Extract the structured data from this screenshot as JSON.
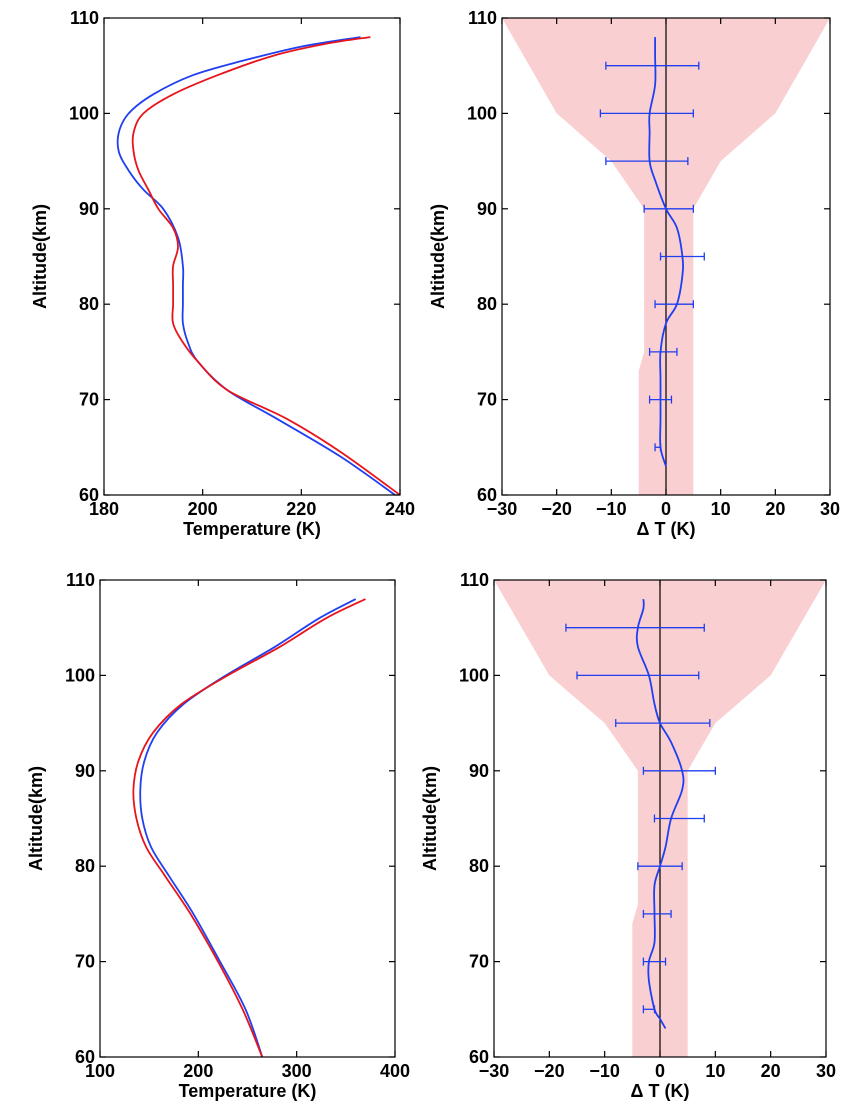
{
  "colors": {
    "blue": "#1f3ff0",
    "red": "#e8141c",
    "band": "#f9cfd2",
    "axis": "#000000"
  },
  "chart_data": [
    {
      "type": "line",
      "panel": "top-left",
      "xlabel": "Temperature (K)",
      "ylabel": "Altitude(km)",
      "xlim": [
        180,
        240
      ],
      "ylim": [
        60,
        110
      ],
      "xticks": [
        180,
        200,
        220,
        240
      ],
      "yticks": [
        60,
        70,
        80,
        90,
        100,
        110
      ],
      "grid": false,
      "series": [
        {
          "color": "blue",
          "points": [
            [
              239,
              60
            ],
            [
              228,
              64
            ],
            [
              215,
              68
            ],
            [
              205,
              71
            ],
            [
              199,
              74
            ],
            [
              197,
              76
            ],
            [
              196,
              78
            ],
            [
              196,
              80
            ],
            [
              196,
              82
            ],
            [
              196,
              84
            ],
            [
              195,
              87
            ],
            [
              192,
              90
            ],
            [
              188,
              92
            ],
            [
              185,
              94
            ],
            [
              183,
              96
            ],
            [
              183,
              98
            ],
            [
              185,
              100
            ],
            [
              190,
              102
            ],
            [
              198,
              104
            ],
            [
              208,
              105.5
            ],
            [
              220,
              107
            ],
            [
              232,
              108
            ]
          ]
        },
        {
          "color": "red",
          "points": [
            [
              240,
              60
            ],
            [
              228,
              64.5
            ],
            [
              217,
              68
            ],
            [
              205,
              71
            ],
            [
              199,
              74
            ],
            [
              196,
              76
            ],
            [
              194,
              78
            ],
            [
              194,
              80
            ],
            [
              194,
              82
            ],
            [
              194,
              84
            ],
            [
              195,
              86
            ],
            [
              194,
              88
            ],
            [
              191,
              90
            ],
            [
              189,
              92
            ],
            [
              187,
              94
            ],
            [
              186,
              96
            ],
            [
              186,
              98
            ],
            [
              188,
              100
            ],
            [
              194,
              102
            ],
            [
              203,
              104
            ],
            [
              214,
              106
            ],
            [
              225,
              107.3
            ],
            [
              234,
              108
            ]
          ]
        }
      ]
    },
    {
      "type": "line",
      "panel": "top-right",
      "xlabel": "Δ T (K)",
      "ylabel": "Altitude(km)",
      "xlim": [
        -30,
        30
      ],
      "ylim": [
        60,
        110
      ],
      "xticks": [
        -30,
        -20,
        -10,
        0,
        10,
        20,
        30
      ],
      "yticks": [
        60,
        70,
        80,
        90,
        100,
        110
      ],
      "grid": false,
      "zero_line": true,
      "band": [
        [
          -5,
          60
        ],
        [
          -5,
          73
        ],
        [
          -4,
          75
        ],
        [
          -4,
          79
        ],
        [
          -4,
          84
        ],
        [
          -4,
          90
        ],
        [
          -10,
          95
        ],
        [
          -20,
          100
        ],
        [
          -30,
          110
        ],
        [
          30,
          110
        ],
        [
          20,
          100
        ],
        [
          10,
          95
        ],
        [
          5,
          90
        ],
        [
          5,
          84
        ],
        [
          5,
          79
        ],
        [
          5,
          75
        ],
        [
          5,
          73
        ],
        [
          5,
          60
        ]
      ],
      "series": [
        {
          "color": "blue",
          "points": [
            [
              0,
              63
            ],
            [
              -1,
              65
            ],
            [
              -1,
              68
            ],
            [
              -1,
              72
            ],
            [
              -1,
              75
            ],
            [
              0,
              78
            ],
            [
              2,
              80
            ],
            [
              3,
              83
            ],
            [
              3,
              85
            ],
            [
              2,
              88
            ],
            [
              0,
              90
            ],
            [
              -2,
              93
            ],
            [
              -3,
              95
            ],
            [
              -3,
              98
            ],
            [
              -3,
              100
            ],
            [
              -2,
              103
            ],
            [
              -2,
              106
            ],
            [
              -2,
              108
            ]
          ]
        }
      ],
      "error_bars": [
        {
          "y": 65,
          "lo": -2,
          "hi": -1
        },
        {
          "y": 70,
          "lo": -3,
          "hi": 1
        },
        {
          "y": 75,
          "lo": -3,
          "hi": 2
        },
        {
          "y": 80,
          "lo": -2,
          "hi": 5
        },
        {
          "y": 85,
          "lo": -1,
          "hi": 7
        },
        {
          "y": 90,
          "lo": -4,
          "hi": 5
        },
        {
          "y": 95,
          "lo": -11,
          "hi": 4
        },
        {
          "y": 100,
          "lo": -12,
          "hi": 5
        },
        {
          "y": 105,
          "lo": -11,
          "hi": 6
        }
      ]
    },
    {
      "type": "line",
      "panel": "bottom-left",
      "xlabel": "Temperature (K)",
      "ylabel": "Altitude(km)",
      "xlim": [
        100,
        400
      ],
      "ylim": [
        60,
        110
      ],
      "xticks": [
        100,
        200,
        300,
        400
      ],
      "yticks": [
        60,
        70,
        80,
        90,
        100,
        110
      ],
      "grid": false,
      "series": [
        {
          "color": "blue",
          "points": [
            [
              265,
              60
            ],
            [
              248,
              65
            ],
            [
              222,
              70
            ],
            [
              195,
              75
            ],
            [
              170,
              79
            ],
            [
              152,
              82
            ],
            [
              143,
              85
            ],
            [
              141,
              88
            ],
            [
              145,
              91
            ],
            [
              158,
              94
            ],
            [
              185,
              97
            ],
            [
              228,
              100
            ],
            [
              278,
              103
            ],
            [
              323,
              106
            ],
            [
              360,
              108
            ]
          ]
        },
        {
          "color": "red",
          "points": [
            [
              265,
              60
            ],
            [
              245,
              65
            ],
            [
              220,
              70
            ],
            [
              192,
              75
            ],
            [
              166,
              79
            ],
            [
              147,
              82
            ],
            [
              137,
              85
            ],
            [
              134,
              88
            ],
            [
              139,
              91
            ],
            [
              154,
              94
            ],
            [
              183,
              97
            ],
            [
              230,
              100
            ],
            [
              283,
              103
            ],
            [
              330,
              106
            ],
            [
              370,
              108
            ]
          ]
        }
      ]
    },
    {
      "type": "line",
      "panel": "bottom-right",
      "xlabel": "Δ T (K)",
      "ylabel": "Altitude(km)",
      "xlim": [
        -30,
        30
      ],
      "ylim": [
        60,
        110
      ],
      "xticks": [
        -30,
        -20,
        -10,
        0,
        10,
        20,
        30
      ],
      "yticks": [
        60,
        70,
        80,
        90,
        100,
        110
      ],
      "grid": false,
      "zero_line": true,
      "band": [
        [
          -5,
          60
        ],
        [
          -5,
          74
        ],
        [
          -4,
          76
        ],
        [
          -4,
          80
        ],
        [
          -4,
          88
        ],
        [
          -4,
          90
        ],
        [
          -10,
          95
        ],
        [
          -20,
          100
        ],
        [
          -30,
          110
        ],
        [
          30,
          110
        ],
        [
          20,
          100
        ],
        [
          10,
          95
        ],
        [
          5,
          90
        ],
        [
          5,
          88
        ],
        [
          5,
          80
        ],
        [
          5,
          76
        ],
        [
          5,
          74
        ],
        [
          5,
          60
        ]
      ],
      "series": [
        {
          "color": "blue",
          "points": [
            [
              1,
              63
            ],
            [
              0,
              64
            ],
            [
              -1,
              65
            ],
            [
              -2,
              68
            ],
            [
              -2,
              70
            ],
            [
              -1,
              72
            ],
            [
              -1,
              75
            ],
            [
              -1,
              78
            ],
            [
              0,
              80
            ],
            [
              1,
              82
            ],
            [
              2,
              85
            ],
            [
              4,
              88
            ],
            [
              4,
              90
            ],
            [
              2,
              93
            ],
            [
              0,
              95
            ],
            [
              -1,
              97
            ],
            [
              -2,
              100
            ],
            [
              -4,
              103
            ],
            [
              -4,
              105
            ],
            [
              -3,
              107
            ],
            [
              -3,
              108
            ]
          ]
        }
      ],
      "error_bars": [
        {
          "y": 65,
          "lo": -3,
          "hi": -1
        },
        {
          "y": 70,
          "lo": -3,
          "hi": 1
        },
        {
          "y": 75,
          "lo": -3,
          "hi": 2
        },
        {
          "y": 80,
          "lo": -4,
          "hi": 4
        },
        {
          "y": 85,
          "lo": -1,
          "hi": 8
        },
        {
          "y": 90,
          "lo": -3,
          "hi": 10
        },
        {
          "y": 95,
          "lo": -8,
          "hi": 9
        },
        {
          "y": 100,
          "lo": -15,
          "hi": 7
        },
        {
          "y": 105,
          "lo": -17,
          "hi": 8
        }
      ]
    }
  ]
}
